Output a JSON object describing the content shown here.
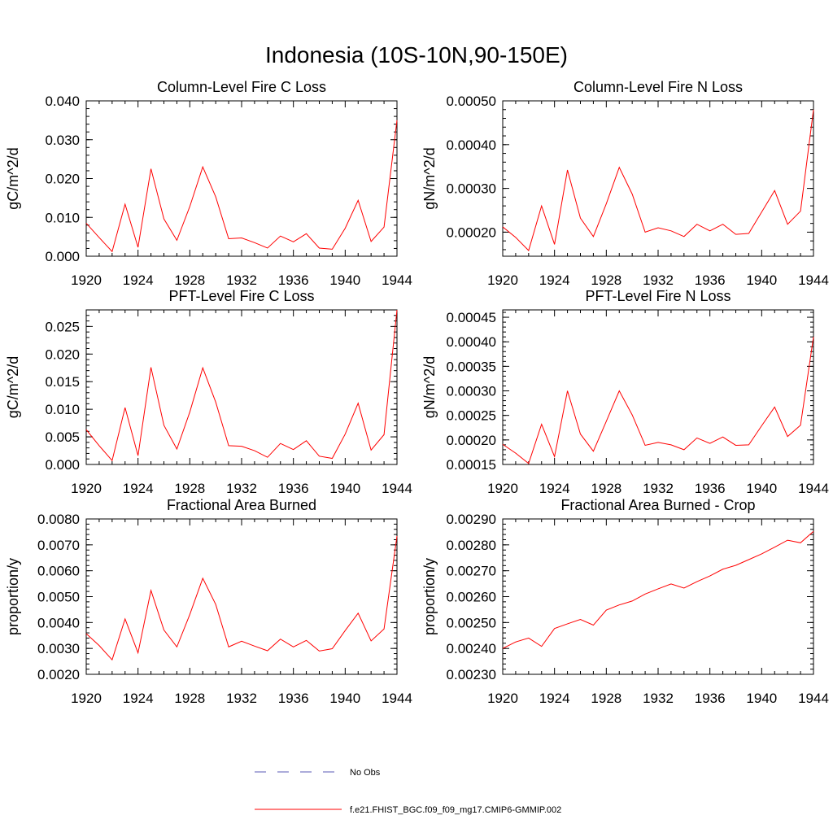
{
  "page_title": "Indonesia (10S-10N,90-150E)",
  "legend": {
    "obs_label": "No Obs",
    "model_label": "f.e21.FHIST_BGC.f09_f09_mg17.CMIP6-GMMIP.002",
    "obs_color": "#5a5ab4",
    "model_color": "#ff0000"
  },
  "chart_data": [
    {
      "type": "line",
      "title": "Column-Level Fire C Loss",
      "ylabel": "gC/m^2/d",
      "xlim": [
        1920,
        1944
      ],
      "ylim": [
        0.0,
        0.04
      ],
      "xticks": [
        1920,
        1924,
        1928,
        1932,
        1936,
        1940,
        1944
      ],
      "yticks": [
        0.0,
        0.01,
        0.02,
        0.03,
        0.04
      ],
      "ytick_labels": [
        "0.000",
        "0.010",
        "0.020",
        "0.030",
        "0.040"
      ],
      "x": [
        1920,
        1921,
        1922,
        1923,
        1924,
        1925,
        1926,
        1927,
        1928,
        1929,
        1930,
        1931,
        1932,
        1933,
        1934,
        1935,
        1936,
        1937,
        1938,
        1939,
        1940,
        1941,
        1942,
        1943,
        1944
      ],
      "series": [
        {
          "name": "f.e21.FHIST_BGC.f09_f09_mg17.CMIP6-GMMIP.002",
          "values": [
            0.0085,
            0.0048,
            0.0012,
            0.0134,
            0.0023,
            0.0225,
            0.0096,
            0.0041,
            0.0128,
            0.023,
            0.0153,
            0.0045,
            0.0047,
            0.0035,
            0.0021,
            0.0052,
            0.0037,
            0.0058,
            0.0021,
            0.0018,
            0.0072,
            0.0144,
            0.0038,
            0.0075,
            0.035
          ]
        }
      ]
    },
    {
      "type": "line",
      "title": "Column-Level Fire N Loss",
      "ylabel": "gN/m^2/d",
      "xlim": [
        1920,
        1944
      ],
      "ylim": [
        0.000145,
        0.0005
      ],
      "xticks": [
        1920,
        1924,
        1928,
        1932,
        1936,
        1940,
        1944
      ],
      "yticks": [
        0.0002,
        0.0003,
        0.0004,
        0.0005
      ],
      "ytick_labels": [
        "0.00020",
        "0.00030",
        "0.00040",
        "0.00050"
      ],
      "x": [
        1920,
        1921,
        1922,
        1923,
        1924,
        1925,
        1926,
        1927,
        1928,
        1929,
        1930,
        1931,
        1932,
        1933,
        1934,
        1935,
        1936,
        1937,
        1938,
        1939,
        1940,
        1941,
        1942,
        1943,
        1944
      ],
      "series": [
        {
          "name": "f.e21.FHIST_BGC.f09_f09_mg17.CMIP6-GMMIP.002",
          "values": [
            0.000212,
            0.000188,
            0.000158,
            0.00026,
            0.000172,
            0.000342,
            0.000232,
            0.00019,
            0.000265,
            0.000348,
            0.000287,
            0.0002,
            0.00021,
            0.000203,
            0.00019,
            0.000218,
            0.000203,
            0.000218,
            0.000195,
            0.000197,
            0.000246,
            0.000295,
            0.000218,
            0.000248,
            0.00048
          ]
        }
      ]
    },
    {
      "type": "line",
      "title": "PFT-Level Fire C Loss",
      "ylabel": "gC/m^2/d",
      "xlim": [
        1920,
        1944
      ],
      "ylim": [
        0.0,
        0.028
      ],
      "xticks": [
        1920,
        1924,
        1928,
        1932,
        1936,
        1940,
        1944
      ],
      "yticks": [
        0.0,
        0.005,
        0.01,
        0.015,
        0.02,
        0.025
      ],
      "ytick_labels": [
        "0.000",
        "0.005",
        "0.010",
        "0.015",
        "0.020",
        "0.025"
      ],
      "x": [
        1920,
        1921,
        1922,
        1923,
        1924,
        1925,
        1926,
        1927,
        1928,
        1929,
        1930,
        1931,
        1932,
        1933,
        1934,
        1935,
        1936,
        1937,
        1938,
        1939,
        1940,
        1941,
        1942,
        1943,
        1944
      ],
      "series": [
        {
          "name": "f.e21.FHIST_BGC.f09_f09_mg17.CMIP6-GMMIP.002",
          "values": [
            0.0063,
            0.0034,
            0.0007,
            0.0103,
            0.0016,
            0.0176,
            0.0071,
            0.0028,
            0.0095,
            0.0175,
            0.0113,
            0.0034,
            0.0033,
            0.0025,
            0.0013,
            0.0038,
            0.0027,
            0.0043,
            0.0015,
            0.0011,
            0.0055,
            0.0111,
            0.0026,
            0.0054,
            0.028
          ]
        }
      ]
    },
    {
      "type": "line",
      "title": "PFT-Level Fire N Loss",
      "ylabel": "gN/m^2/d",
      "xlim": [
        1920,
        1944
      ],
      "ylim": [
        0.00015,
        0.000465
      ],
      "xticks": [
        1920,
        1924,
        1928,
        1932,
        1936,
        1940,
        1944
      ],
      "yticks": [
        0.00015,
        0.0002,
        0.00025,
        0.0003,
        0.00035,
        0.0004,
        0.00045
      ],
      "ytick_labels": [
        "0.00015",
        "0.00020",
        "0.00025",
        "0.00030",
        "0.00035",
        "0.00040",
        "0.00045"
      ],
      "x": [
        1920,
        1921,
        1922,
        1923,
        1924,
        1925,
        1926,
        1927,
        1928,
        1929,
        1930,
        1931,
        1932,
        1933,
        1934,
        1935,
        1936,
        1937,
        1938,
        1939,
        1940,
        1941,
        1942,
        1943,
        1944
      ],
      "series": [
        {
          "name": "f.e21.FHIST_BGC.f09_f09_mg17.CMIP6-GMMIP.002",
          "values": [
            0.000191,
            0.000173,
            0.000152,
            0.000232,
            0.000166,
            0.0003,
            0.000212,
            0.000177,
            0.000238,
            0.0003,
            0.000251,
            0.000189,
            0.000195,
            0.00019,
            0.00018,
            0.000204,
            0.000193,
            0.000206,
            0.000189,
            0.00019,
            0.000229,
            0.000267,
            0.000207,
            0.00023,
            0.00041
          ]
        }
      ]
    },
    {
      "type": "line",
      "title": "Fractional Area Burned",
      "ylabel": "proportion/y",
      "xlim": [
        1920,
        1944
      ],
      "ylim": [
        0.002,
        0.008
      ],
      "xticks": [
        1920,
        1924,
        1928,
        1932,
        1936,
        1940,
        1944
      ],
      "yticks": [
        0.002,
        0.003,
        0.004,
        0.005,
        0.006,
        0.007,
        0.008
      ],
      "ytick_labels": [
        "0.0020",
        "0.0030",
        "0.0040",
        "0.0050",
        "0.0060",
        "0.0070",
        "0.0080"
      ],
      "x": [
        1920,
        1921,
        1922,
        1923,
        1924,
        1925,
        1926,
        1927,
        1928,
        1929,
        1930,
        1931,
        1932,
        1933,
        1934,
        1935,
        1936,
        1937,
        1938,
        1939,
        1940,
        1941,
        1942,
        1943,
        1944
      ],
      "series": [
        {
          "name": "f.e21.FHIST_BGC.f09_f09_mg17.CMIP6-GMMIP.002",
          "values": [
            0.00357,
            0.00311,
            0.00256,
            0.00414,
            0.00283,
            0.00524,
            0.00371,
            0.00306,
            0.00431,
            0.00571,
            0.0047,
            0.00306,
            0.00328,
            0.00309,
            0.00291,
            0.00336,
            0.00306,
            0.00331,
            0.0029,
            0.00299,
            0.00369,
            0.00436,
            0.00329,
            0.00375,
            0.00734
          ]
        }
      ]
    },
    {
      "type": "line",
      "title": "Fractional Area Burned - Crop",
      "ylabel": "proportion/y",
      "xlim": [
        1920,
        1944
      ],
      "ylim": [
        0.0023,
        0.0029
      ],
      "xticks": [
        1920,
        1924,
        1928,
        1932,
        1936,
        1940,
        1944
      ],
      "yticks": [
        0.0023,
        0.0024,
        0.0025,
        0.0026,
        0.0027,
        0.0028,
        0.0029
      ],
      "ytick_labels": [
        "0.00230",
        "0.00240",
        "0.00250",
        "0.00260",
        "0.00270",
        "0.00280",
        "0.00290"
      ],
      "x": [
        1920,
        1921,
        1922,
        1923,
        1924,
        1925,
        1926,
        1927,
        1928,
        1929,
        1930,
        1931,
        1932,
        1933,
        1934,
        1935,
        1936,
        1937,
        1938,
        1939,
        1940,
        1941,
        1942,
        1943,
        1944
      ],
      "series": [
        {
          "name": "f.e21.FHIST_BGC.f09_f09_mg17.CMIP6-GMMIP.002",
          "values": [
            0.0024,
            0.002425,
            0.00244,
            0.002408,
            0.002477,
            0.002495,
            0.002512,
            0.00249,
            0.002548,
            0.002568,
            0.002583,
            0.00261,
            0.00263,
            0.002649,
            0.002633,
            0.002658,
            0.00268,
            0.002706,
            0.002721,
            0.002743,
            0.002765,
            0.002791,
            0.002818,
            0.002808,
            0.002852
          ]
        }
      ]
    }
  ]
}
